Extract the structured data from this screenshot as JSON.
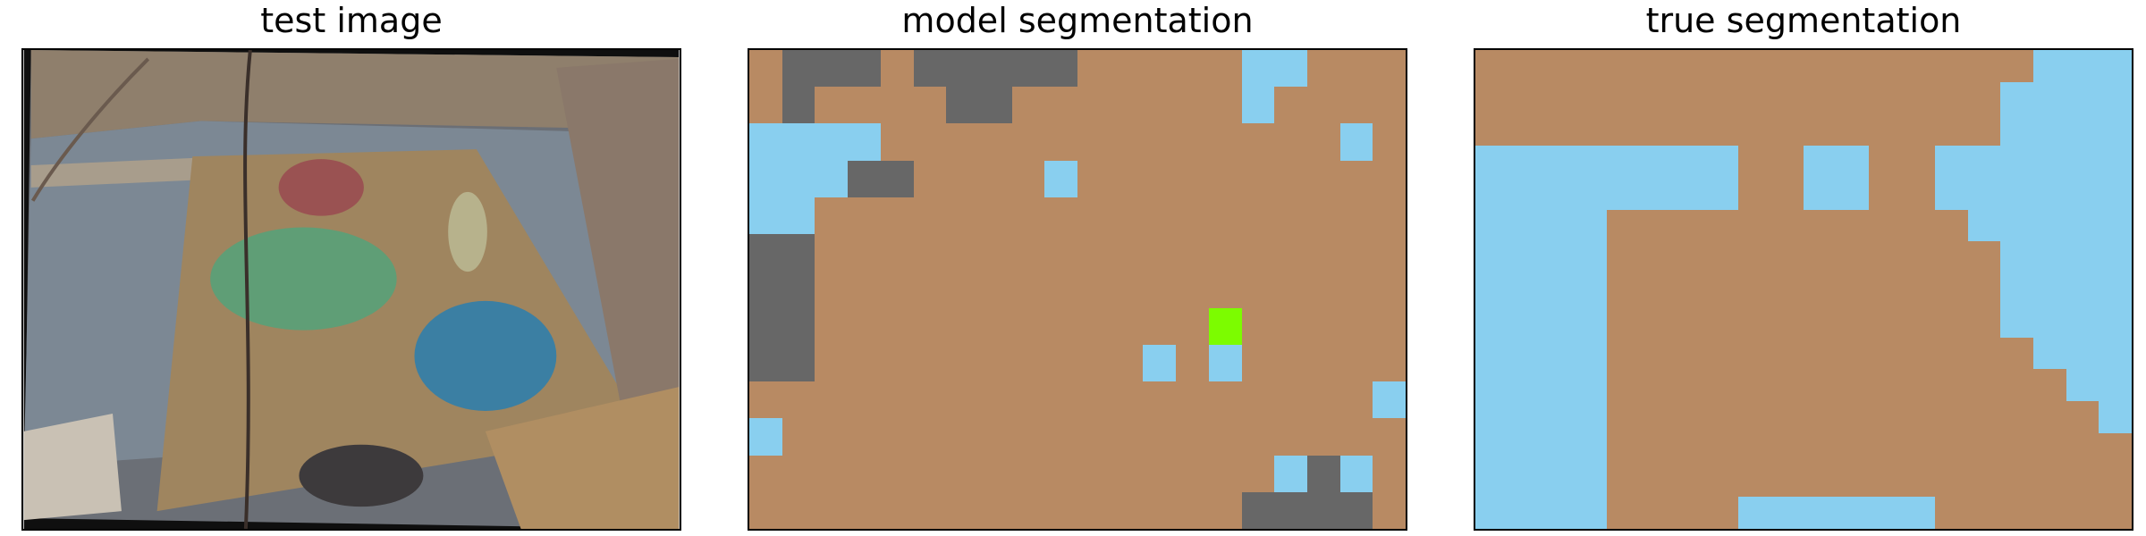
{
  "panels": {
    "test_image": {
      "title": "test image"
    },
    "model_segmentation": {
      "title": "model segmentation",
      "legend_colors": {
        "b": "#b88a63",
        "L": "#89cfef",
        "D": "#676767",
        "G": "#7cfc00"
      },
      "rows": [
        "bDDDbDDDDDbbbbbLLbbb",
        "bDbbbbDDbbbbbbbLbbbb",
        "LLLLbbbbbbbbbbbbbbLb",
        "LLLDDbbbbLbbbbbbbbbb",
        "LLbbbbbbbbbbbbbbbbbb",
        "DDbbbbbbbbbbbbbbbbbb",
        "DDbbbbbbbbbbbbbbbbbb",
        "DDbbbbbbbbbbbbGbbbbb",
        "DDbbbbbbbbbbLbLbbbbb",
        "bbbbbbbbbbbbbbbbbbbL",
        "Lbbbbbbbbbbbbbbbbbbb",
        "bbbbbbbbbbbbbbbbLDLb"
      ],
      "bottom_row": "bbbbbbbbbbbbbbbDDDDb"
    },
    "true_segmentation": {
      "title": "true segmentation",
      "legend_colors": {
        "b": "#b88a63",
        "L": "#89cfef"
      },
      "rows": [
        "bbbbbbbbbbbbbbbbbLLL",
        "bbbbbbbbbbbbbbbbLLLL",
        "bbbbbbbbbbbbbbbbLLLL",
        "LLLLLLLLbbLLbbLLLLLL",
        "LLLLLLLLbbLLbbLLLLLL",
        "LLLLbbbbbbbbbbbLLLLL",
        "LLLLbbbbbbbbbbbbLLLL",
        "LLLLbbbbbbbbbbbbLLLL",
        "LLLLbbbbbbbbbbbbLLLL",
        "LLLLbbbbbbbbbbbbbLLL",
        "LLLLbbbbbbbbbbbbbbLL",
        "LLLLbbbbbbbbbbbbbbbL",
        "LLLLbbbbbbbbbbbbbbbb",
        "LLLLbbbbbbbbbbbbbbbb",
        "LLLLbbbbLLLLLLbbbbbb"
      ]
    }
  }
}
